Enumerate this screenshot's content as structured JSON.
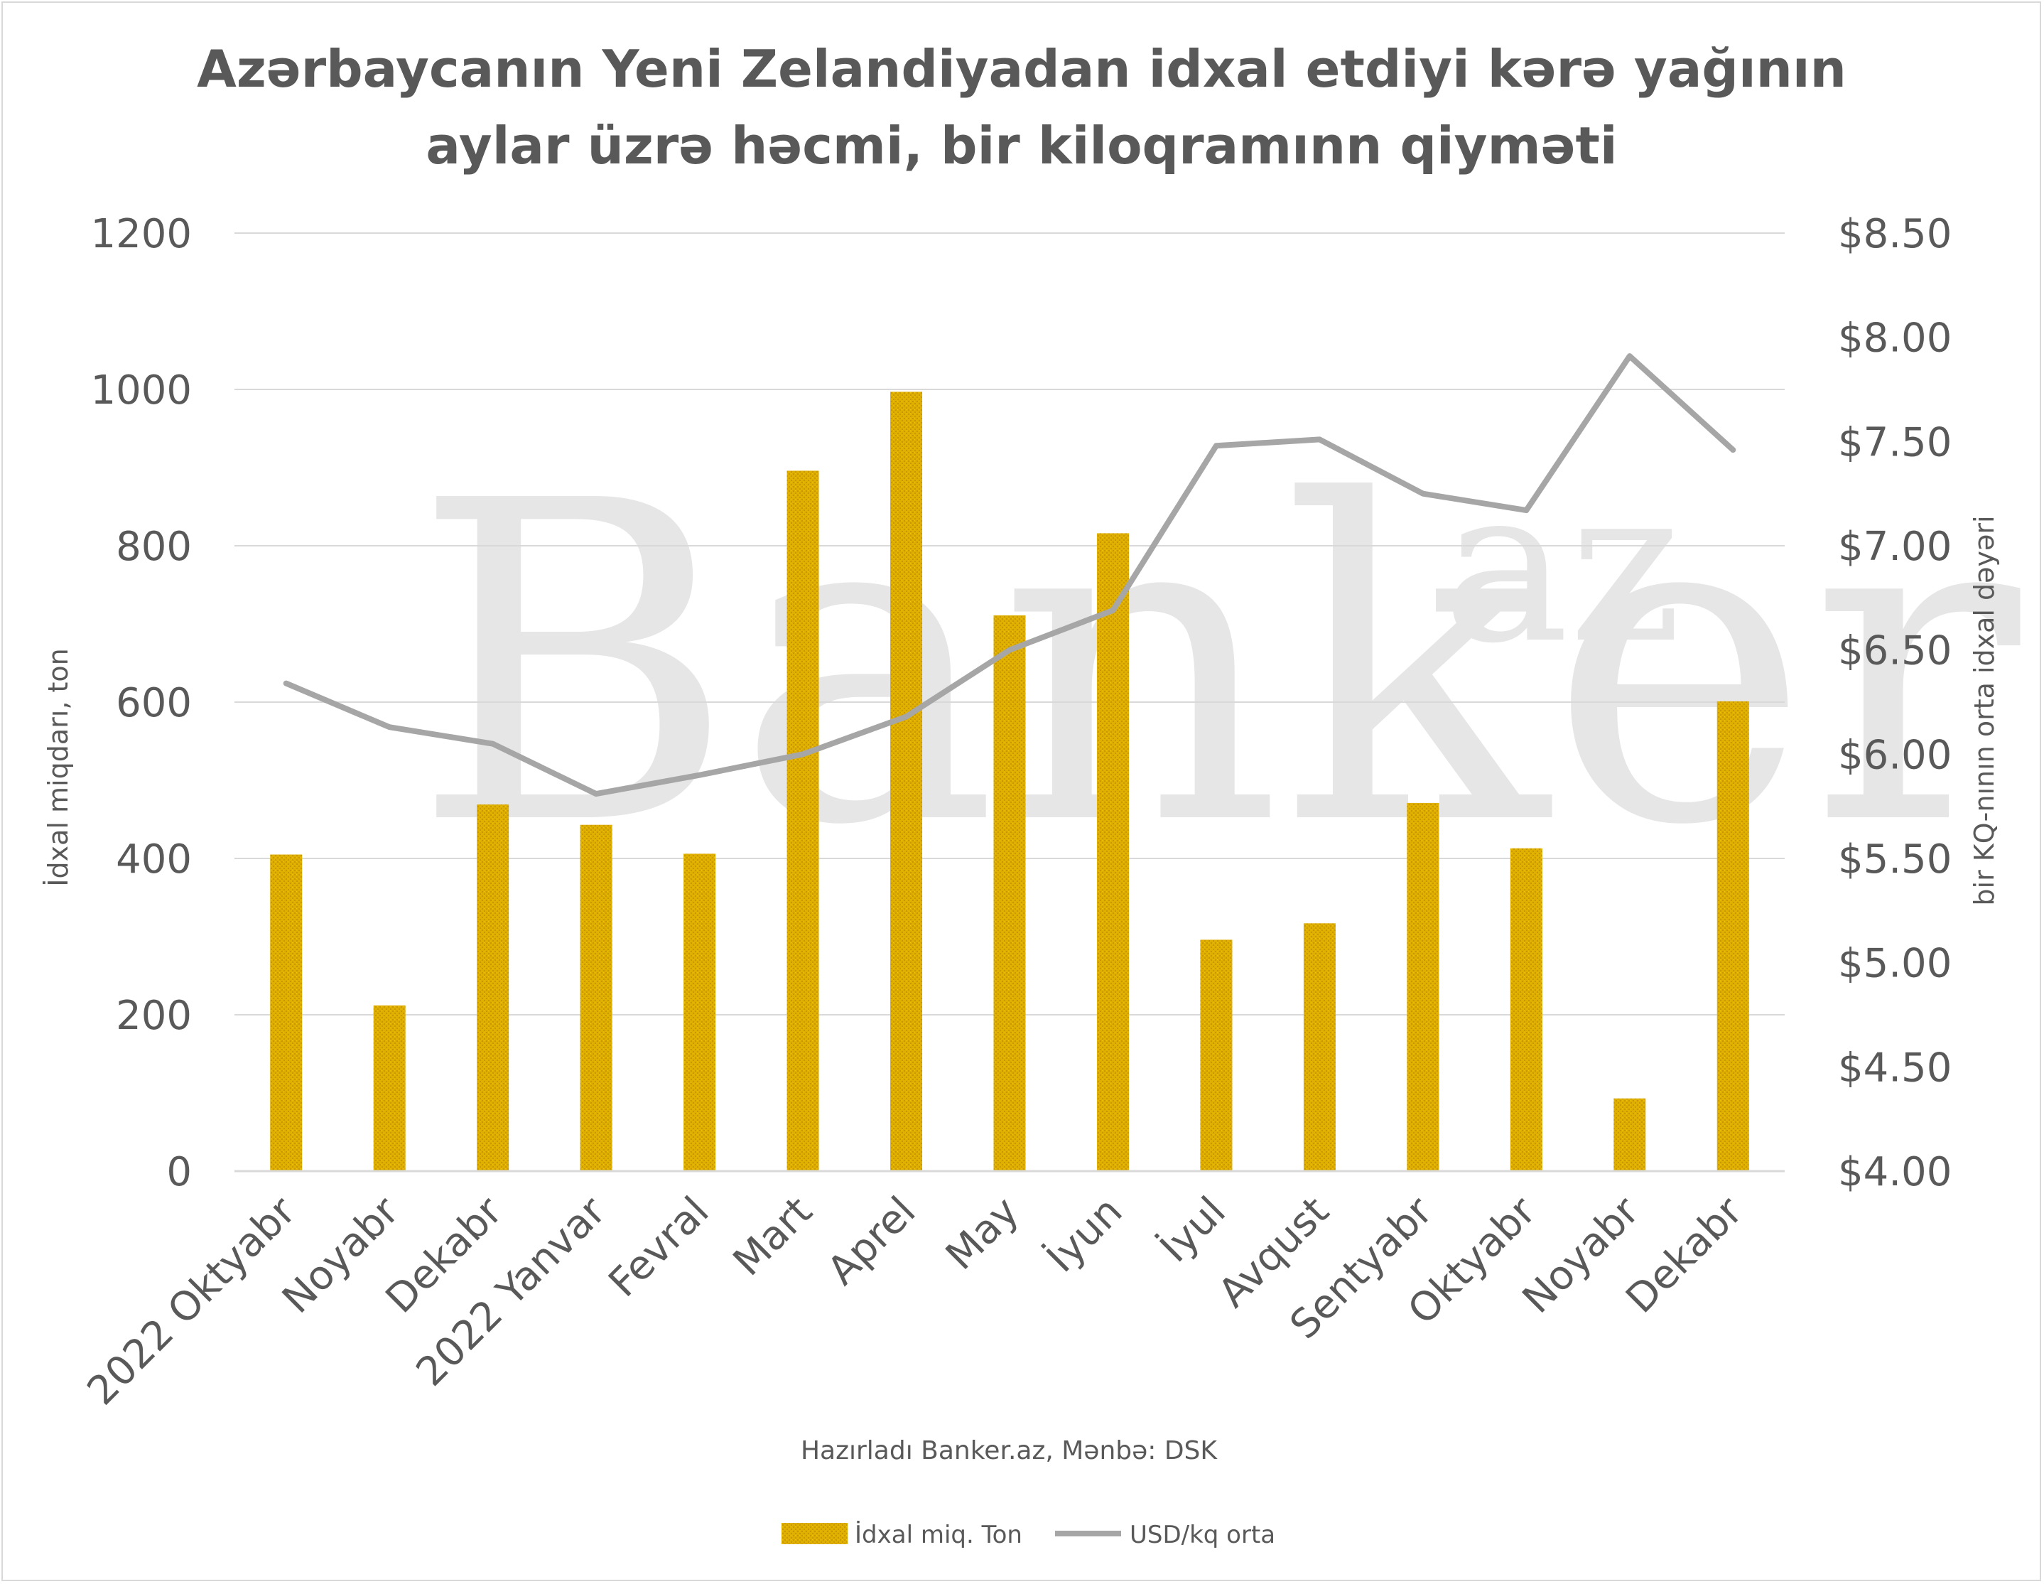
{
  "chart_data": {
    "type": "bar",
    "title": "Azərbaycanın Yeni Zelandiyadan idxal etdiyi kərə yağının aylar üzrə həcmi, bir kiloqramınn qiyməti",
    "title_lines": [
      "Azərbaycanın Yeni Zelandiyadan idxal etdiyi kərə yağının",
      "aylar üzrə həcmi, bir kiloqramınn qiyməti"
    ],
    "categories": [
      "2022 Oktyabr",
      "Noyabr",
      "Dekabr",
      "2022 Yanvar",
      "Fevral",
      "Mart",
      "Aprel",
      "May",
      "İyun",
      "İyul",
      "Avqust",
      "Sentyabr",
      "Oktyabr",
      "Noyabr",
      "Dekabr"
    ],
    "series": [
      {
        "name": "İdxal miq. Ton",
        "type": "bar",
        "axis": "left",
        "color": "#e0b000",
        "values": [
          405,
          212,
          469,
          443,
          406,
          896,
          997,
          711,
          816,
          296,
          317,
          471,
          413,
          93,
          601
        ]
      },
      {
        "name": "USD/kq orta",
        "type": "line",
        "axis": "right",
        "color": "#a6a6a6",
        "values": [
          6.34,
          6.13,
          6.05,
          5.81,
          5.9,
          6.0,
          6.18,
          6.5,
          6.69,
          7.48,
          7.51,
          7.25,
          7.17,
          7.91,
          7.46
        ]
      }
    ],
    "ylabel": "İdxal miqdarı, ton",
    "ylabel_right": "bir KQ-nının orta idxal dəyəri",
    "ylim": [
      0,
      1200
    ],
    "ylim_right": [
      4.0,
      8.5
    ],
    "yticks": [
      "0",
      "200",
      "400",
      "600",
      "800",
      "1000",
      "1200"
    ],
    "yticks_right": [
      "$4.00",
      "$4.50",
      "$5.00",
      "$5.50",
      "$6.00",
      "$6.50",
      "$7.00",
      "$7.50",
      "$8.00",
      "$8.50"
    ],
    "grid": true,
    "legend_position": "bottom",
    "source": "Hazırladı Banker.az, Mənbə: DSK",
    "watermark": {
      "main": "Banker",
      "suffix": "az"
    }
  }
}
